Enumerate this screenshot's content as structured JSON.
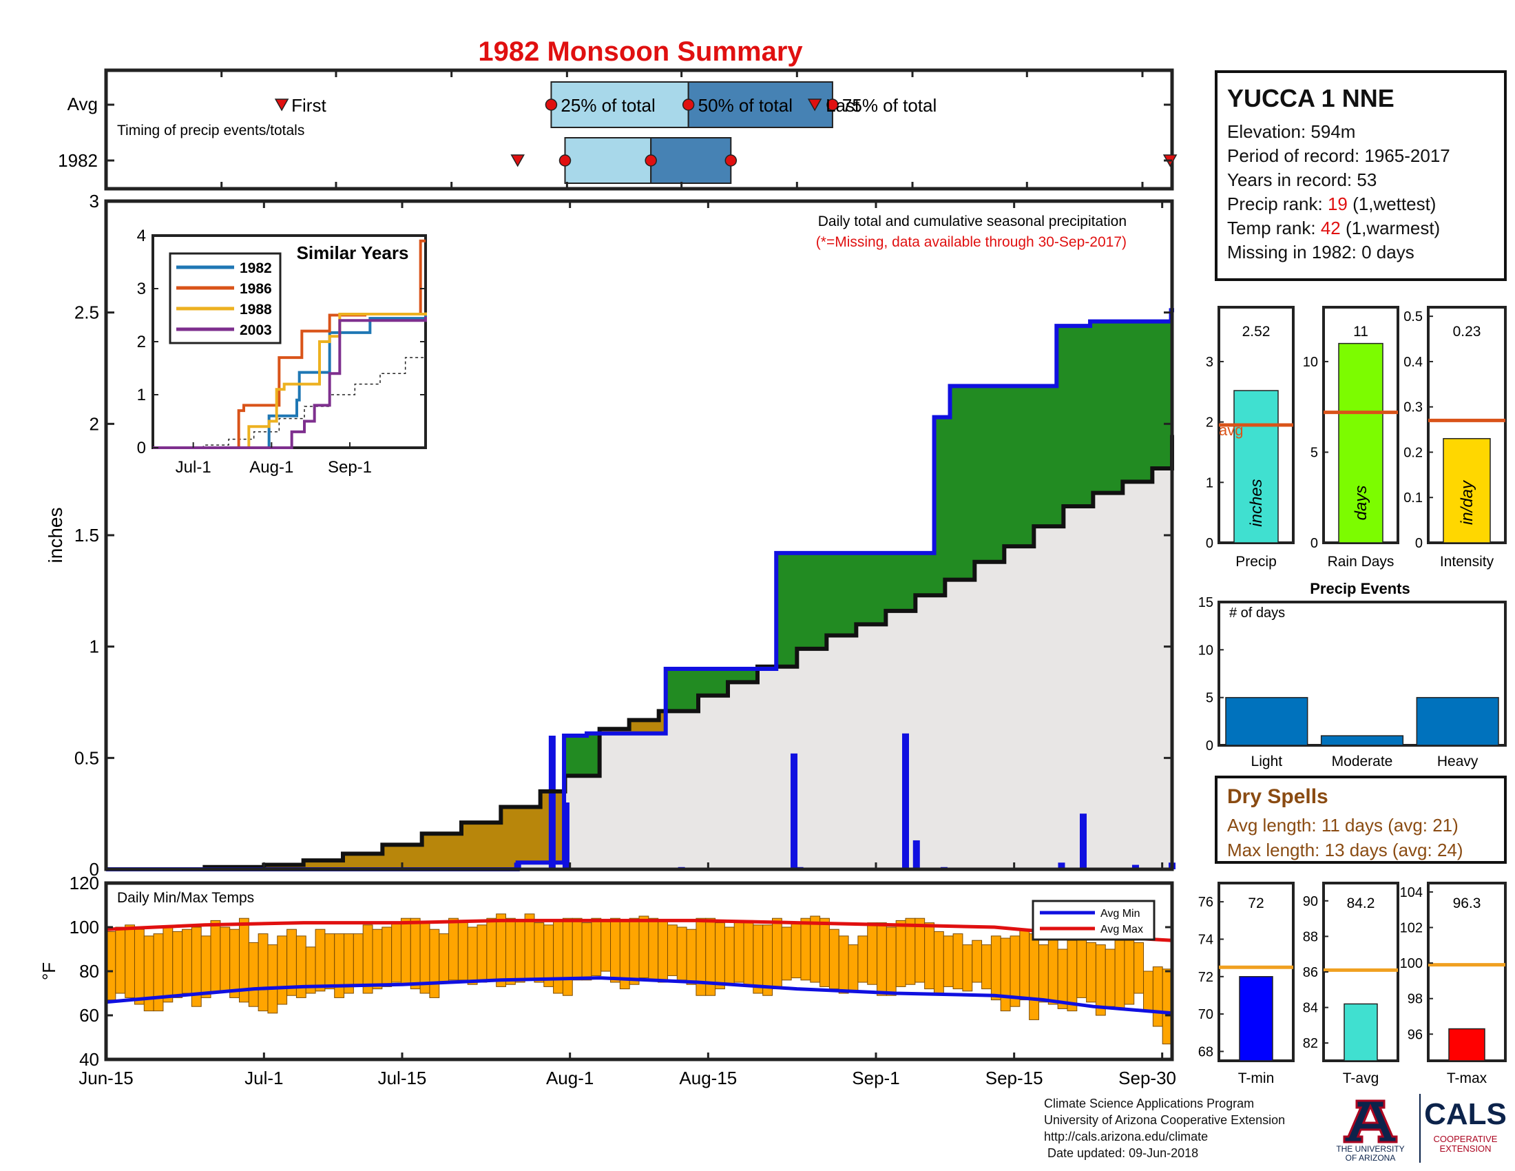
{
  "title": "1982 Monsoon Summary",
  "timing": {
    "row_labels": [
      "Avg",
      "1982"
    ],
    "subtitle": "Timing of precip events/totals",
    "avg": {
      "first": 17.8,
      "p25": 45.1,
      "p50": 59.0,
      "p75": 73.6,
      "last": 71.8
    },
    "year": {
      "first": 41.7,
      "p25": 46.5,
      "p50": 55.2,
      "p75": 63.3,
      "last": 107.8
    },
    "avg_labels": {
      "first": "First",
      "p25": "25% of total",
      "p50": "50% of total",
      "p75": "75% of total",
      "last": "Last"
    },
    "x_ticks": [
      0,
      11.7,
      23.3,
      35,
      46.7,
      58.3,
      70,
      81.7,
      93.3,
      105
    ]
  },
  "main_chart": {
    "ylabel": "inches",
    "y_ticks": [
      "0",
      "0.5",
      "1",
      "1.5",
      "2",
      "2.5",
      "3"
    ],
    "note": "Daily total and cumulative seasonal precipitation",
    "missing_note": "(*=Missing, data available through 30-Sep-2017)"
  },
  "chart_data": [
    {
      "type": "area",
      "title": "",
      "ylabel": "inches",
      "xlabel": "",
      "ylim": [
        0,
        3
      ],
      "x_ticks": [
        "Jun-15",
        "Jul-1",
        "Jul-15",
        "Aug-1",
        "Aug-15",
        "Sep-1",
        "Sep-15",
        "Sep-30"
      ],
      "avg_cumulative": {
        "x": [
          0,
          10,
          16,
          20,
          24,
          28,
          32,
          36,
          40,
          44,
          46.5,
          50,
          53,
          56,
          60,
          63,
          66,
          70,
          73,
          76,
          79,
          82,
          85,
          88,
          91,
          94,
          97,
          100,
          103,
          106,
          108
        ],
        "y": [
          0,
          0.01,
          0.02,
          0.04,
          0.07,
          0.11,
          0.16,
          0.21,
          0.28,
          0.35,
          0.42,
          0.63,
          0.67,
          0.71,
          0.78,
          0.84,
          0.91,
          0.99,
          1.05,
          1.1,
          1.16,
          1.23,
          1.3,
          1.38,
          1.45,
          1.54,
          1.63,
          1.69,
          1.74,
          1.8,
          1.95
        ]
      },
      "year_cumulative": {
        "x": [
          0,
          41.7,
          45.5,
          46.4,
          48.7,
          56.7,
          58.4,
          67.9,
          69.3,
          83.9,
          84.9,
          85.5,
          95.5,
          96.3,
          99.7,
          107.9,
          108
        ],
        "y": [
          0,
          0.03,
          0.03,
          0.6,
          0.61,
          0.9,
          0.9,
          1.42,
          1.42,
          2.03,
          2.03,
          2.17,
          2.17,
          2.44,
          2.46,
          2.51,
          2.52
        ]
      },
      "daily_bars": {
        "x": [
          41.7,
          45.2,
          46.6,
          58.3,
          69.7,
          70.3,
          81.0,
          82.1,
          84.9,
          96.8,
          99.0,
          104.3,
          108
        ],
        "y": [
          0.03,
          0.6,
          0.3,
          0.01,
          0.52,
          0.01,
          0.61,
          0.13,
          0.01,
          0.03,
          0.25,
          0.02,
          0.03
        ]
      }
    },
    {
      "type": "line",
      "title": "Similar Years",
      "ylim": [
        0,
        4
      ],
      "x_ticks": [
        "Jul-1",
        "Aug-1",
        "Sep-1"
      ],
      "y_ticks": [
        "0",
        "1",
        "2",
        "3",
        "4"
      ],
      "series": [
        {
          "name": "1982",
          "color": "#1f77b4",
          "x": [
            0,
            42,
            46,
            48,
            57,
            58,
            68,
            70,
            84,
            86,
            108
          ],
          "y": [
            0,
            0,
            0.6,
            0.6,
            0.9,
            1.42,
            1.42,
            2.17,
            2.17,
            2.44,
            2.52
          ]
        },
        {
          "name": "1986",
          "color": "#d95319",
          "x": [
            0,
            30,
            34,
            36,
            46,
            50,
            57,
            59,
            65,
            70,
            73,
            84,
            102,
            106,
            108
          ],
          "y": [
            0,
            0,
            0.7,
            0.8,
            0.8,
            1.7,
            1.7,
            2.2,
            2.2,
            2.5,
            2.5,
            2.52,
            2.52,
            3.9,
            3.9
          ]
        },
        {
          "name": "1988",
          "color": "#edb120",
          "x": [
            0,
            36,
            38,
            46,
            49,
            52,
            62,
            66,
            70,
            74,
            108
          ],
          "y": [
            0,
            0,
            0.4,
            0.5,
            1.1,
            1.2,
            1.2,
            2.0,
            2.1,
            2.52,
            2.55
          ]
        },
        {
          "name": "2003",
          "color": "#7e2f8e",
          "x": [
            0,
            50,
            55,
            60,
            64,
            70,
            74,
            108
          ],
          "y": [
            0,
            0,
            0.3,
            0.5,
            0.8,
            1.4,
            2.4,
            2.47
          ]
        }
      ],
      "avg_line": {
        "x": [
          0,
          20,
          30,
          40,
          50,
          60,
          70,
          80,
          90,
          100,
          108
        ],
        "y": [
          0,
          0.05,
          0.16,
          0.3,
          0.55,
          0.78,
          1.0,
          1.2,
          1.4,
          1.7,
          1.95
        ]
      }
    },
    {
      "type": "bar",
      "title": "",
      "categories": [
        "Precip",
        "Rain Days",
        "Intensity"
      ],
      "values": [
        2.52,
        11,
        0.23
      ],
      "avg_values": [
        1.95,
        7.2,
        0.27
      ],
      "units": [
        "inches",
        "days",
        "in/day"
      ],
      "ylims": [
        [
          0,
          3.9
        ],
        [
          0,
          13
        ],
        [
          0,
          0.52
        ]
      ],
      "y_ticks": [
        [
          "0",
          "1",
          "2",
          "3"
        ],
        [
          "0",
          "5",
          "10"
        ],
        [
          "0",
          "0.1",
          "0.2",
          "0.3",
          "0.4",
          "0.5"
        ]
      ],
      "colors": [
        "#40e0d0",
        "#7cfc00",
        "#ffd700"
      ],
      "avg_label": "avg"
    },
    {
      "type": "bar",
      "title": "Precip Events",
      "ylabel": "# of days",
      "categories": [
        "Light",
        "Moderate",
        "Heavy"
      ],
      "values": [
        5,
        1,
        5
      ],
      "ylim": [
        0,
        15
      ],
      "y_ticks": [
        "0",
        "5",
        "10",
        "15"
      ]
    },
    {
      "type": "bar",
      "title": "Daily Min/Max Temps",
      "ylabel": "°F",
      "ylim": [
        40,
        120
      ],
      "y_ticks": [
        "40",
        "60",
        "80",
        "100",
        "120"
      ],
      "legend": [
        "Avg Min",
        "Avg Max"
      ],
      "series": [
        {
          "name": "Daily Min",
          "values": [
            67,
            70,
            68,
            65,
            62,
            62,
            66,
            68,
            70,
            64,
            68,
            70,
            71,
            68,
            66,
            64,
            62,
            61,
            65,
            69,
            68,
            70,
            71,
            72,
            68,
            70,
            74,
            70,
            72,
            73,
            75,
            74,
            72,
            70,
            68,
            75,
            76,
            76,
            74,
            75,
            76,
            73,
            74,
            75,
            76,
            75,
            73,
            70,
            69,
            76,
            76,
            78,
            80,
            75,
            72,
            74,
            77,
            76,
            75,
            78,
            76,
            74,
            69,
            69,
            72,
            74,
            75,
            73,
            70,
            69,
            72,
            76,
            77,
            76,
            75,
            73,
            72,
            70,
            71,
            75,
            74,
            69,
            69,
            73,
            74,
            75,
            72,
            70,
            73,
            72,
            71,
            75,
            72,
            67,
            62,
            64,
            67,
            58,
            66,
            65,
            63,
            62,
            68,
            66,
            60,
            64,
            63,
            65,
            70,
            62,
            55,
            47
          ]
        },
        {
          "name": "Daily Max",
          "values": [
            98,
            100,
            101,
            99,
            96,
            97,
            100,
            98,
            99,
            100,
            96,
            103,
            100,
            99,
            104,
            93,
            97,
            92,
            96,
            99,
            96,
            91,
            99,
            97,
            97,
            97,
            97,
            101,
            99,
            100,
            102,
            104,
            104,
            102,
            99,
            97,
            104,
            103,
            100,
            101,
            104,
            106,
            104,
            103,
            106,
            102,
            101,
            103,
            104,
            104,
            102,
            104,
            103,
            104,
            103,
            104,
            105,
            104,
            103,
            101,
            100,
            99,
            104,
            104,
            102,
            100,
            103,
            103,
            101,
            101,
            104,
            100,
            102,
            104,
            105,
            104,
            99,
            96,
            92,
            96,
            102,
            102,
            100,
            103,
            104,
            104,
            102,
            98,
            96,
            97,
            92,
            94,
            92,
            96,
            95,
            96,
            99,
            97,
            92,
            96,
            90,
            94,
            95,
            93,
            92,
            90,
            94,
            94,
            93,
            80,
            82,
            81
          ]
        },
        {
          "name": "Avg Min",
          "x": [
            0,
            5,
            10,
            15,
            20,
            30,
            40,
            50,
            60,
            70,
            80,
            90,
            95,
            100,
            108
          ],
          "values": [
            66,
            68,
            70,
            72,
            73,
            74,
            76,
            77,
            75,
            72,
            70,
            69,
            67,
            64,
            61
          ]
        },
        {
          "name": "Avg Max",
          "x": [
            0,
            5,
            10,
            20,
            30,
            40,
            50,
            60,
            70,
            80,
            90,
            95,
            100,
            108
          ],
          "values": [
            99,
            100,
            101,
            102,
            102,
            103,
            103,
            103,
            102,
            101,
            100,
            98,
            96,
            94
          ]
        }
      ],
      "x_ticks": [
        "Jun-15",
        "Jul-1",
        "Jul-15",
        "Aug-1",
        "Aug-15",
        "Sep-1",
        "Sep-15",
        "Sep-30"
      ]
    },
    {
      "type": "bar",
      "title": "",
      "categories": [
        "T-min",
        "T-avg",
        "T-max"
      ],
      "values": [
        72,
        84.2,
        96.3
      ],
      "avg_values": [
        72.5,
        86.1,
        99.9
      ],
      "ylims": [
        [
          67.5,
          77
        ],
        [
          81,
          91
        ],
        [
          94.5,
          104.5
        ]
      ],
      "y_ticks": [
        [
          "68",
          "70",
          "72",
          "74",
          "76"
        ],
        [
          "82",
          "84",
          "86",
          "88",
          "90"
        ],
        [
          "96",
          "98",
          "100",
          "102",
          "104"
        ]
      ],
      "colors": [
        "#0000ff",
        "#40e0d0",
        "#ff0000"
      ]
    }
  ],
  "station": {
    "name": "YUCCA 1 NNE",
    "elevation": "Elevation: 594m",
    "period": "Period of record: 1965-2017",
    "years": "Years in record: 53",
    "precip_rank_pre": "Precip rank: ",
    "precip_rank_val": "19",
    "precip_rank_post": " (1,wettest)",
    "temp_rank_pre": "Temp rank: ",
    "temp_rank_val": "42",
    "temp_rank_post": " (1,warmest)",
    "missing": "Missing in 1982: 0 days"
  },
  "summary_values": [
    "2.52",
    "11",
    "0.23"
  ],
  "temp_values": [
    "72",
    "84.2",
    "96.3"
  ],
  "dry_spells": {
    "title": "Dry Spells",
    "avg": "Avg length: 11 days (avg: 21)",
    "max": "Max length: 13 days (avg: 24)"
  },
  "footer": {
    "lines": [
      "Climate Science Applications Program",
      "University of Arizona Cooperative Extension",
      "http://cals.arizona.edu/climate",
      " Date updated: 09-Jun-2018"
    ]
  },
  "logos": {
    "ua_line1": "THE UNIVERSITY",
    "ua_line2": "OF ARIZONA",
    "cals": "CALS",
    "cals_sub1": "COOPERATIVE",
    "cals_sub2": "EXTENSION"
  },
  "colors": {
    "title": "#e01010",
    "green": "#228b22",
    "gold": "#b8860b",
    "grey_fill": "#e8e6e5",
    "blue": "#1010e0",
    "temp_bar": "#ffa500",
    "light_blue": "#a8d8ea",
    "mid_blue": "#4682b4"
  }
}
